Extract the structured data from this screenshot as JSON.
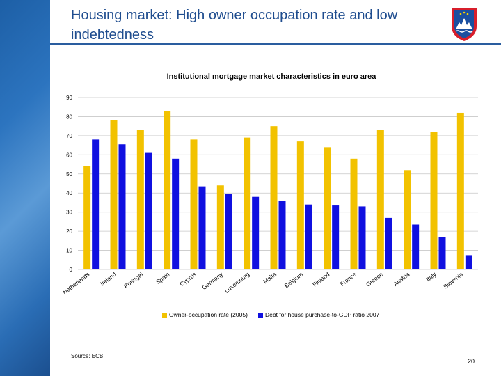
{
  "slide": {
    "title": "Housing market: High owner occupation rate and low indebtedness",
    "source": "Source: ECB",
    "page_number": "20"
  },
  "colors": {
    "owner": "#f2c200",
    "debt": "#1010e0",
    "grid": "#c8c8c8",
    "title_blue": "#1f4d8f"
  },
  "chart_data": {
    "type": "bar",
    "title": "Institutional mortgage market characteristics in euro area",
    "categories": [
      "Netherlands",
      "Ireland",
      "Portugal",
      "Spain",
      "Cyprus",
      "Germany",
      "Luxemburg",
      "Malta",
      "Belgium",
      "Finland",
      "France",
      "Greece",
      "Austria",
      "Italy",
      "Slovenia"
    ],
    "series": [
      {
        "name": "Owner-occupation rate (2005)",
        "values": [
          54,
          78,
          73,
          83,
          68,
          44,
          69,
          75,
          67,
          64,
          58,
          73,
          52,
          72,
          82
        ]
      },
      {
        "name": "Debt for house purchase-to-GDP ratio 2007",
        "values": [
          68,
          65.5,
          61,
          58,
          43.5,
          39.5,
          38,
          36,
          34,
          33.5,
          33,
          27,
          23.5,
          17,
          7.5
        ]
      }
    ],
    "yticks": [
      0,
      10,
      20,
      30,
      40,
      50,
      60,
      70,
      80,
      90
    ],
    "ylim": [
      0,
      90
    ],
    "xlabel": "",
    "ylabel": "",
    "grid": true,
    "legend": "bottom"
  }
}
